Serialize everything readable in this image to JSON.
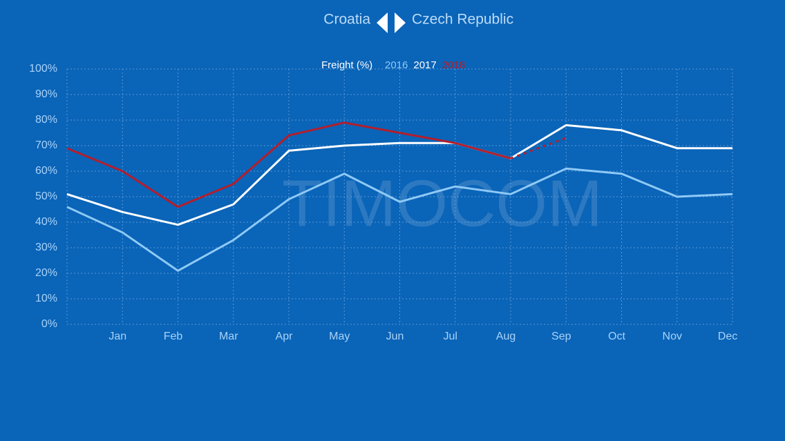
{
  "nav": {
    "previous": "Croatia",
    "next": "Czech Republic"
  },
  "chart_data": {
    "type": "line",
    "title": "Freight (%)",
    "watermark": "TIMOCOM",
    "categories": [
      null,
      "Jan",
      "Feb",
      "Mar",
      "Apr",
      "May",
      "Jun",
      "Jul",
      "Aug",
      "Sep",
      "Oct",
      "Nov",
      "Dec"
    ],
    "series": [
      {
        "name": "2016",
        "color": "#8fcaf6",
        "values": [
          46,
          36,
          21,
          33,
          49,
          59,
          48,
          54,
          51,
          61,
          59,
          50,
          51
        ]
      },
      {
        "name": "2017",
        "color": "#ffffff",
        "values": [
          51,
          44,
          39,
          47,
          68,
          70,
          71,
          71,
          65,
          78,
          76,
          69,
          69
        ]
      },
      {
        "name": "2018",
        "color": "#b41e2c",
        "values": [
          69,
          60,
          46,
          55,
          74,
          79,
          75,
          71,
          65,
          73,
          null,
          null,
          null
        ],
        "dashed_last_segment": true
      }
    ],
    "ylim": [
      0,
      100
    ],
    "yticks": [
      {
        "value": 0,
        "label": "0%"
      },
      {
        "value": 10,
        "label": "10%"
      },
      {
        "value": 20,
        "label": "20%"
      },
      {
        "value": 30,
        "label": "30%"
      },
      {
        "value": 40,
        "label": "40%"
      },
      {
        "value": 50,
        "label": "50%"
      },
      {
        "value": 60,
        "label": "60%"
      },
      {
        "value": 70,
        "label": "70%"
      },
      {
        "value": 80,
        "label": "80%"
      },
      {
        "value": 90,
        "label": "90%"
      },
      {
        "value": 100,
        "label": "100%"
      }
    ],
    "grid": true
  }
}
